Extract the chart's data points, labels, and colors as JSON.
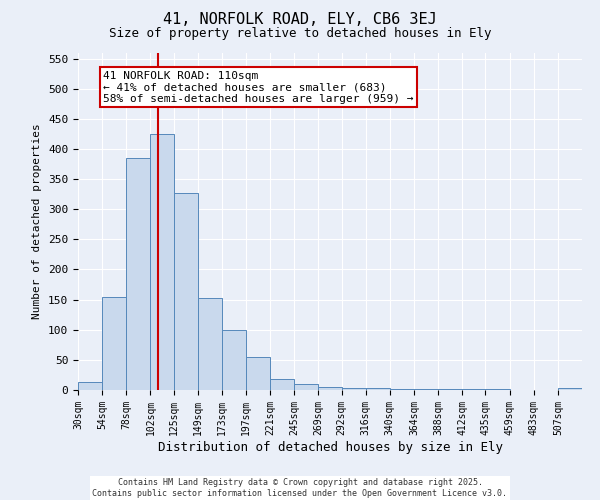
{
  "title1": "41, NORFOLK ROAD, ELY, CB6 3EJ",
  "title2": "Size of property relative to detached houses in Ely",
  "xlabel": "Distribution of detached houses by size in Ely",
  "ylabel": "Number of detached properties",
  "bin_labels": [
    "30sqm",
    "54sqm",
    "78sqm",
    "102sqm",
    "125sqm",
    "149sqm",
    "173sqm",
    "197sqm",
    "221sqm",
    "245sqm",
    "269sqm",
    "292sqm",
    "316sqm",
    "340sqm",
    "364sqm",
    "388sqm",
    "412sqm",
    "435sqm",
    "459sqm",
    "483sqm",
    "507sqm"
  ],
  "bar_values": [
    13,
    155,
    385,
    425,
    327,
    153,
    100,
    54,
    19,
    10,
    5,
    4,
    3,
    2,
    1,
    1,
    2,
    1,
    0,
    0,
    4
  ],
  "bin_edges": [
    30,
    54,
    78,
    102,
    125,
    149,
    173,
    197,
    221,
    245,
    269,
    292,
    316,
    340,
    364,
    388,
    412,
    435,
    459,
    483,
    507,
    531
  ],
  "bar_color": "#c9d9ed",
  "bar_edge_color": "#5588bb",
  "property_size": 110,
  "property_label": "41 NORFOLK ROAD: 110sqm",
  "annotation_line1": "← 41% of detached houses are smaller (683)",
  "annotation_line2": "58% of semi-detached houses are larger (959) →",
  "red_line_color": "#cc0000",
  "annotation_box_color": "#ffffff",
  "annotation_box_edge": "#cc0000",
  "ylim": [
    0,
    560
  ],
  "yticks": [
    0,
    50,
    100,
    150,
    200,
    250,
    300,
    350,
    400,
    450,
    500,
    550
  ],
  "background_color": "#eaeff8",
  "grid_color": "#ffffff",
  "footer1": "Contains HM Land Registry data © Crown copyright and database right 2025.",
  "footer2": "Contains public sector information licensed under the Open Government Licence v3.0."
}
